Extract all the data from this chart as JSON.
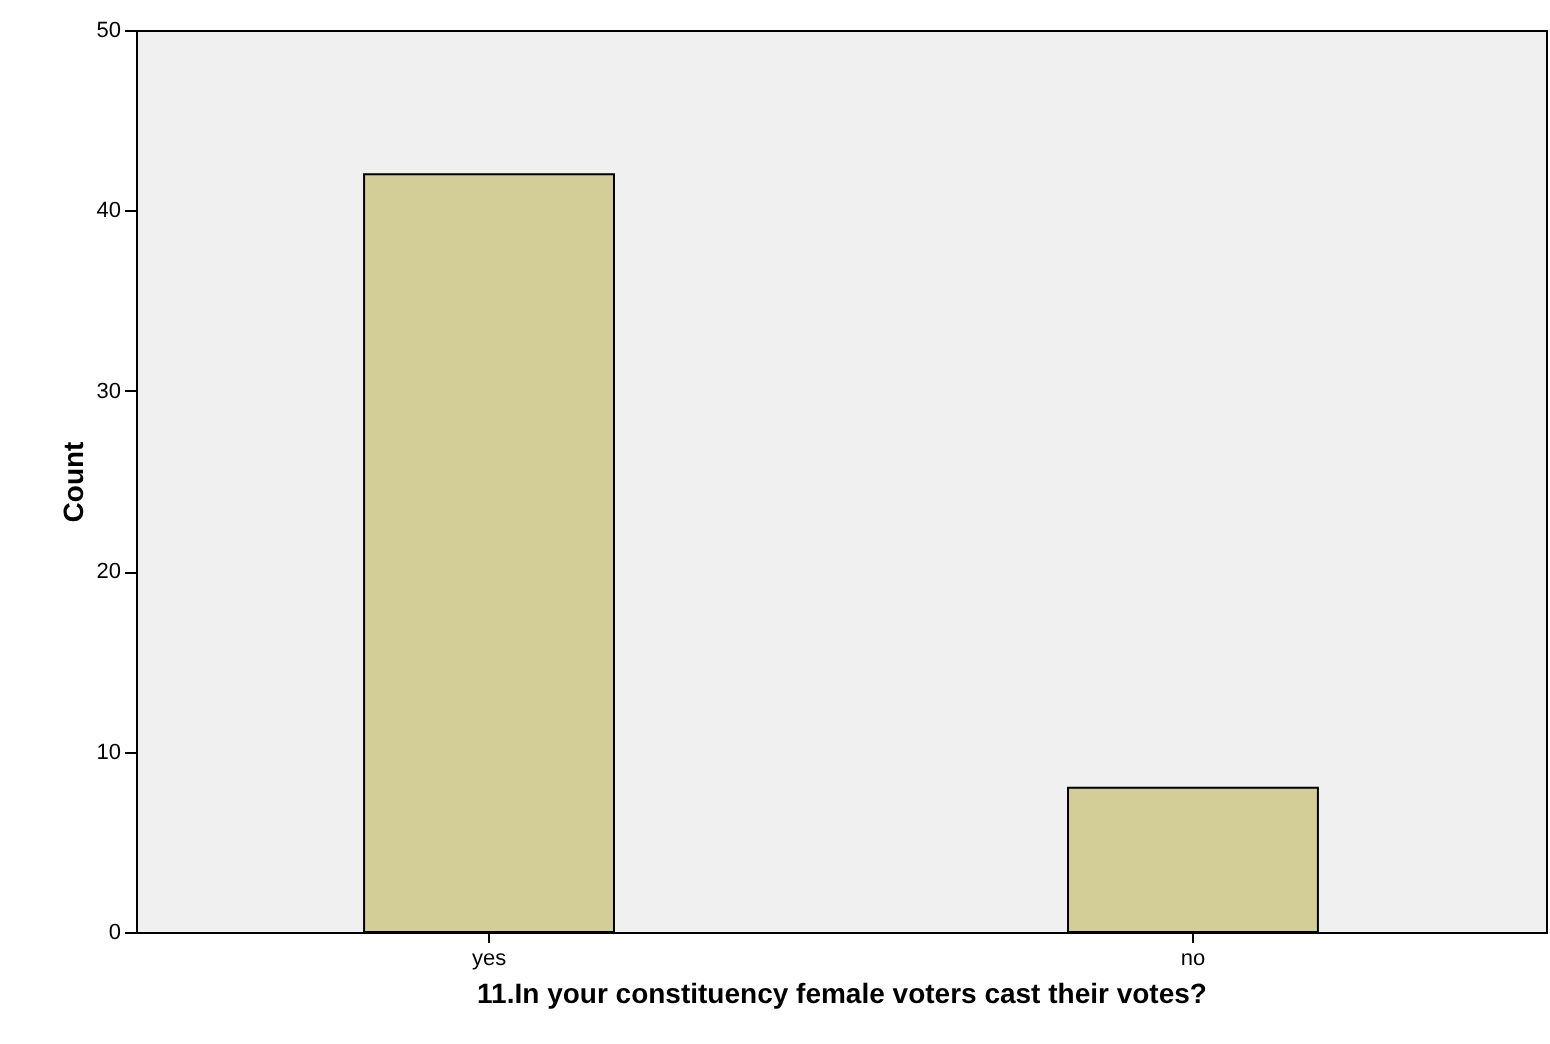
{
  "chart_data": {
    "type": "bar",
    "xlabel": "11.In your constituency female voters cast their votes?",
    "ylabel": "Count",
    "categories": [
      "yes",
      "no"
    ],
    "values": [
      42,
      8
    ],
    "color": "#d3ce97",
    "ylim": [
      0,
      50
    ],
    "yticks": [
      0,
      10,
      20,
      30,
      40,
      50
    ],
    "grid": false
  }
}
